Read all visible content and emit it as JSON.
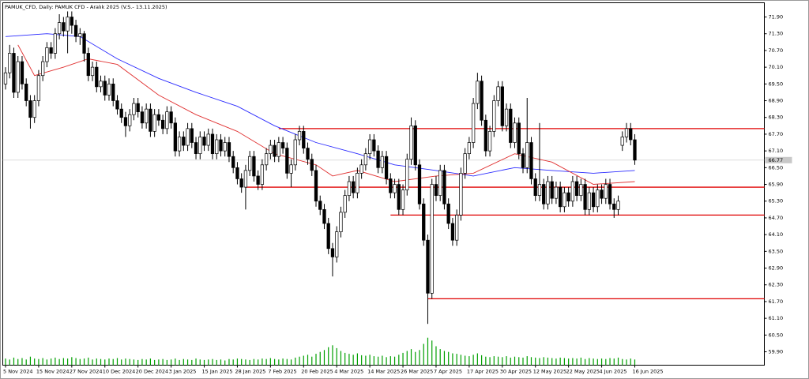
{
  "chart_data": {
    "type": "candlestick",
    "title": "PAMUK_CFD, Daily: PAMUK CFD - Aralık 2025 (V.S.- 13.11.2025)",
    "categories": [
      "5 Nov 2024",
      null,
      null,
      null,
      null,
      null,
      null,
      null,
      "15 Nov 2024",
      null,
      null,
      null,
      null,
      null,
      null,
      null,
      "27 Nov 2024",
      null,
      null,
      null,
      null,
      null,
      null,
      null,
      "10 Dec 2024",
      null,
      null,
      null,
      null,
      null,
      null,
      null,
      "20 Dec 2024",
      null,
      null,
      null,
      null,
      null,
      null,
      null,
      "3 Jan 2025",
      null,
      null,
      null,
      null,
      null,
      null,
      null,
      "15 Jan 2025",
      null,
      null,
      null,
      null,
      null,
      null,
      null,
      "28 Jan 2025",
      null,
      null,
      null,
      null,
      null,
      null,
      null,
      "7 Feb 2025",
      null,
      null,
      null,
      null,
      null,
      null,
      null,
      "20 Feb 2025",
      null,
      null,
      null,
      null,
      null,
      null,
      null,
      "4 Mar 2025",
      null,
      null,
      null,
      null,
      null,
      null,
      null,
      "14 Mar 2025",
      null,
      null,
      null,
      null,
      null,
      null,
      null,
      "26 Mar 2025",
      null,
      null,
      null,
      null,
      null,
      null,
      null,
      "7 Apr 2025",
      null,
      null,
      null,
      null,
      null,
      null,
      null,
      "17 Apr 2025",
      null,
      null,
      null,
      null,
      null,
      null,
      null,
      "30 Apr 2025",
      null,
      null,
      null,
      null,
      null,
      null,
      null,
      "12 May 2025",
      null,
      null,
      null,
      null,
      null,
      null,
      null,
      "22 May 2025",
      null,
      null,
      null,
      null,
      null,
      null,
      null,
      "4 Jun 2025",
      null,
      null,
      null,
      null,
      null,
      null,
      null,
      "16 Jun 2025"
    ],
    "open": [
      69.5,
      69.9,
      70.6,
      69.2,
      70.3,
      69.5,
      68.9,
      68.3,
      68.9,
      69.8,
      70.3,
      70.8,
      70.6,
      71.3,
      71.7,
      71.4,
      71.9,
      71.6,
      71.2,
      71.3,
      70.6,
      69.8,
      70.1,
      69.4,
      69.6,
      69.1,
      69.5,
      68.9,
      68.6,
      68.3,
      68.0,
      68.4,
      68.8,
      68.5,
      68.1,
      68.6,
      67.8,
      68.4,
      68.2,
      67.9,
      68.5,
      68.1,
      67.1,
      67.6,
      67.3,
      67.9,
      67.4,
      67.0,
      67.6,
      67.3,
      67.7,
      67.0,
      67.5,
      67.1,
      67.4,
      66.9,
      66.5,
      66.1,
      65.8,
      66.4,
      66.9,
      66.2,
      65.9,
      66.6,
      67.0,
      67.3,
      66.9,
      67.4,
      67.2,
      66.3,
      66.6,
      67.5,
      67.8,
      67.2,
      66.8,
      66.4,
      65.3,
      65.0,
      64.5,
      63.6,
      63.3,
      64.2,
      64.9,
      65.5,
      66.0,
      65.6,
      66.3,
      66.6,
      67.0,
      67.5,
      67.1,
      66.5,
      66.9,
      66.1,
      65.6,
      65.9,
      65.0,
      65.7,
      66.8,
      68.0,
      66.6,
      65.2,
      63.9,
      62.0,
      65.9,
      65.5,
      66.4,
      65.2,
      64.5,
      63.9,
      64.8,
      66.3,
      67.0,
      67.4,
      68.8,
      69.6,
      68.2,
      67.1,
      67.8,
      68.9,
      69.4,
      68.0,
      68.6,
      67.4,
      68.1,
      67.0,
      66.5,
      67.4,
      66.1,
      65.5,
      65.9,
      65.2,
      66.0,
      65.4,
      65.8,
      65.1,
      65.6,
      65.3,
      66.0,
      65.5,
      65.9,
      65.0,
      65.6,
      65.1,
      65.7,
      65.4,
      65.9,
      65.2,
      65.0,
      67.3,
      67.6,
      67.9,
      67.5
    ],
    "high": [
      70.1,
      70.9,
      70.8,
      70.5,
      70.5,
      69.7,
      69.1,
      69.1,
      70.0,
      70.5,
      71.0,
      71.0,
      71.5,
      72.0,
      71.9,
      72.1,
      72.1,
      71.8,
      71.5,
      71.4,
      70.8,
      70.3,
      70.3,
      69.8,
      69.8,
      69.7,
      69.7,
      69.1,
      68.8,
      68.5,
      68.6,
      69.0,
      69.0,
      68.7,
      68.8,
      68.8,
      68.6,
      68.6,
      68.4,
      68.7,
      68.7,
      68.3,
      67.8,
      67.8,
      68.1,
      68.1,
      67.6,
      67.8,
      67.8,
      67.9,
      67.9,
      67.7,
      67.7,
      67.6,
      67.6,
      67.1,
      66.7,
      66.3,
      66.6,
      67.1,
      67.1,
      66.4,
      66.8,
      67.2,
      67.5,
      67.5,
      67.6,
      67.6,
      67.4,
      66.8,
      67.7,
      68.0,
      68.0,
      67.4,
      67.0,
      66.6,
      65.5,
      65.2,
      64.7,
      63.8,
      64.4,
      65.1,
      65.7,
      66.2,
      66.2,
      66.5,
      66.8,
      67.2,
      67.7,
      67.7,
      67.3,
      67.1,
      67.1,
      66.3,
      66.1,
      66.1,
      65.9,
      67.0,
      68.3,
      68.2,
      66.8,
      65.4,
      64.1,
      66.1,
      66.2,
      66.6,
      66.6,
      65.4,
      64.7,
      65.0,
      66.5,
      67.2,
      67.6,
      69.0,
      69.9,
      69.8,
      68.4,
      68.0,
      69.1,
      69.6,
      69.6,
      68.8,
      68.8,
      68.3,
      68.3,
      67.2,
      69.0,
      67.6,
      66.3,
      68.1,
      66.1,
      66.2,
      66.2,
      66.0,
      66.0,
      65.8,
      65.8,
      66.2,
      66.2,
      66.1,
      66.1,
      65.8,
      65.8,
      65.9,
      65.9,
      66.1,
      66.1,
      65.4,
      65.5,
      67.8,
      68.1,
      68.1,
      67.7
    ],
    "low": [
      69.3,
      69.7,
      69.0,
      69.0,
      69.3,
      68.7,
      67.9,
      68.1,
      68.7,
      69.6,
      70.1,
      70.4,
      70.4,
      71.1,
      71.2,
      70.6,
      71.3,
      71.0,
      70.9,
      70.3,
      69.6,
      69.6,
      69.2,
      69.2,
      68.9,
      68.9,
      68.7,
      68.4,
      68.1,
      67.6,
      67.8,
      68.2,
      68.3,
      67.9,
      67.9,
      67.6,
      67.6,
      68.0,
      67.7,
      67.7,
      67.9,
      66.9,
      66.9,
      67.1,
      67.1,
      67.2,
      66.8,
      66.8,
      67.1,
      67.1,
      66.8,
      66.8,
      66.9,
      66.9,
      66.7,
      66.3,
      65.9,
      65.6,
      65.0,
      66.2,
      66.0,
      65.7,
      65.7,
      66.4,
      66.8,
      66.7,
      66.7,
      67.0,
      66.1,
      65.8,
      66.4,
      67.3,
      67.0,
      66.6,
      66.2,
      65.1,
      64.8,
      64.3,
      63.4,
      62.6,
      63.1,
      64.0,
      64.7,
      65.3,
      65.4,
      65.4,
      66.1,
      66.4,
      66.8,
      66.9,
      66.3,
      66.3,
      65.9,
      65.4,
      65.4,
      64.8,
      64.8,
      65.5,
      66.6,
      66.4,
      65.0,
      63.7,
      60.9,
      61.8,
      65.3,
      65.3,
      65.0,
      64.3,
      63.7,
      63.7,
      64.6,
      66.1,
      66.8,
      67.2,
      68.6,
      68.0,
      66.9,
      66.9,
      67.6,
      68.7,
      67.8,
      67.8,
      67.2,
      67.2,
      66.8,
      66.3,
      66.3,
      65.9,
      65.3,
      65.3,
      65.0,
      65.0,
      65.2,
      65.2,
      64.9,
      64.9,
      65.1,
      65.1,
      65.3,
      65.3,
      64.8,
      64.8,
      64.9,
      64.9,
      65.2,
      65.2,
      65.0,
      64.7,
      64.8,
      67.1,
      67.4,
      67.3,
      66.6
    ],
    "close": [
      69.9,
      70.6,
      69.2,
      70.3,
      69.5,
      68.9,
      68.3,
      68.9,
      69.8,
      70.3,
      70.8,
      70.6,
      71.3,
      71.7,
      71.4,
      71.9,
      71.6,
      71.2,
      71.3,
      70.6,
      69.8,
      70.1,
      69.4,
      69.6,
      69.1,
      69.5,
      68.9,
      68.6,
      68.3,
      68.0,
      68.4,
      68.8,
      68.5,
      68.1,
      68.6,
      67.8,
      68.4,
      68.2,
      67.9,
      68.5,
      68.1,
      67.1,
      67.6,
      67.3,
      67.9,
      67.4,
      67.0,
      67.6,
      67.3,
      67.7,
      67.0,
      67.5,
      67.1,
      67.4,
      66.9,
      66.5,
      66.1,
      65.8,
      66.4,
      66.9,
      66.2,
      65.9,
      66.6,
      67.0,
      67.3,
      66.9,
      67.4,
      67.2,
      66.3,
      66.6,
      67.5,
      67.8,
      67.2,
      66.8,
      66.4,
      65.3,
      65.0,
      64.5,
      63.6,
      63.3,
      64.2,
      64.9,
      65.5,
      66.0,
      65.6,
      66.3,
      66.6,
      67.0,
      67.5,
      67.1,
      66.5,
      66.9,
      66.1,
      65.6,
      65.9,
      65.0,
      65.7,
      66.8,
      68.0,
      66.6,
      65.2,
      63.9,
      62.0,
      65.9,
      65.5,
      66.4,
      65.2,
      64.5,
      63.9,
      64.8,
      66.3,
      67.0,
      67.4,
      68.8,
      69.6,
      68.2,
      67.1,
      67.8,
      68.9,
      69.4,
      68.0,
      68.6,
      67.4,
      68.1,
      67.0,
      66.5,
      67.4,
      66.1,
      65.5,
      65.9,
      65.2,
      66.0,
      65.4,
      65.8,
      65.1,
      65.6,
      65.3,
      66.0,
      65.5,
      65.9,
      65.0,
      65.6,
      65.1,
      65.7,
      65.4,
      65.9,
      65.2,
      65.0,
      65.3,
      67.6,
      67.9,
      67.5,
      66.77
    ],
    "volume": [
      14,
      12,
      16,
      13,
      15,
      12,
      18,
      14,
      13,
      15,
      12,
      14,
      16,
      13,
      15,
      14,
      17,
      15,
      13,
      14,
      16,
      12,
      14,
      13,
      12,
      14,
      13,
      15,
      12,
      14,
      13,
      12,
      11,
      13,
      12,
      14,
      11,
      12,
      13,
      11,
      12,
      14,
      11,
      13,
      12,
      11,
      14,
      12,
      11,
      12,
      13,
      11,
      12,
      10,
      13,
      12,
      14,
      13,
      12,
      11,
      13,
      12,
      14,
      13,
      15,
      13,
      12,
      14,
      13,
      12,
      16,
      18,
      20,
      22,
      18,
      24,
      28,
      32,
      38,
      42,
      36,
      30,
      26,
      24,
      22,
      25,
      21,
      20,
      22,
      19,
      18,
      20,
      17,
      19,
      18,
      22,
      26,
      30,
      34,
      28,
      32,
      45,
      58,
      52,
      40,
      34,
      30,
      28,
      25,
      24,
      22,
      20,
      19,
      22,
      25,
      21,
      18,
      17,
      19,
      18,
      17,
      19,
      16,
      18,
      17,
      16,
      19,
      17,
      16,
      15,
      17,
      16,
      15,
      14,
      16,
      15,
      14,
      15,
      14,
      16,
      13,
      15,
      14,
      13,
      14,
      13,
      15,
      14,
      16,
      13,
      12,
      14,
      12
    ],
    "volume_lim": [
      0,
      100
    ],
    "volume_color": "#00a000",
    "up_color": "#ffffff",
    "down_color": "#000000",
    "lines": [
      {
        "color": "#2a2aff",
        "x": [
          0,
          10,
          18,
          27,
          37,
          46,
          56,
          65,
          75,
          85,
          94,
          104,
          113,
          123,
          132,
          142,
          152
        ],
        "values": [
          71.2,
          71.3,
          71.2,
          70.4,
          69.7,
          69.2,
          68.7,
          68.0,
          67.4,
          67.0,
          66.6,
          66.4,
          66.2,
          66.5,
          66.4,
          66.3,
          66.4
        ]
      },
      {
        "color": "#e03030",
        "x": [
          3,
          7,
          14,
          20,
          27,
          37,
          46,
          56,
          65,
          75,
          79,
          85,
          94,
          104,
          113,
          123,
          132,
          142,
          152
        ],
        "values": [
          70.9,
          69.8,
          70.1,
          70.4,
          70.2,
          69.1,
          68.4,
          67.8,
          67.0,
          66.6,
          66.2,
          66.4,
          66.0,
          66.2,
          66.3,
          67.0,
          66.7,
          65.9,
          66.0
        ]
      }
    ],
    "hlines": [
      {
        "value": 67.9,
        "from": 66,
        "color": "#e00000"
      },
      {
        "value": 65.8,
        "from": 58,
        "color": "#e00000"
      },
      {
        "value": 64.8,
        "from": 93,
        "color": "#e00000"
      },
      {
        "value": 61.8,
        "from": 102,
        "color": "#e00000"
      }
    ],
    "ylim": [
      59.42,
      72.41
    ],
    "yticks": [
      {
        "value": 71.9,
        "label": "71.90"
      },
      {
        "value": 71.3,
        "label": "71.30"
      },
      {
        "value": 70.7,
        "label": "70.70"
      },
      {
        "value": 70.1,
        "label": "70.10"
      },
      {
        "value": 69.5,
        "label": "69.50"
      },
      {
        "value": 68.9,
        "label": "68.90"
      },
      {
        "value": 68.3,
        "label": "68.30"
      },
      {
        "value": 67.7,
        "label": "67.70"
      },
      {
        "value": 67.1,
        "label": "67.10"
      },
      {
        "value": 66.5,
        "label": "66.50"
      },
      {
        "value": 65.9,
        "label": "65.90"
      },
      {
        "value": 65.3,
        "label": "65.30"
      },
      {
        "value": 64.7,
        "label": "64.70"
      },
      {
        "value": 64.1,
        "label": "64.10"
      },
      {
        "value": 63.5,
        "label": "63.50"
      },
      {
        "value": 62.9,
        "label": "62.90"
      },
      {
        "value": 62.3,
        "label": "62.30"
      },
      {
        "value": 61.7,
        "label": "61.70"
      },
      {
        "value": 61.1,
        "label": "61.10"
      },
      {
        "value": 60.5,
        "label": "60.50"
      },
      {
        "value": 59.9,
        "label": "59.90"
      }
    ]
  }
}
